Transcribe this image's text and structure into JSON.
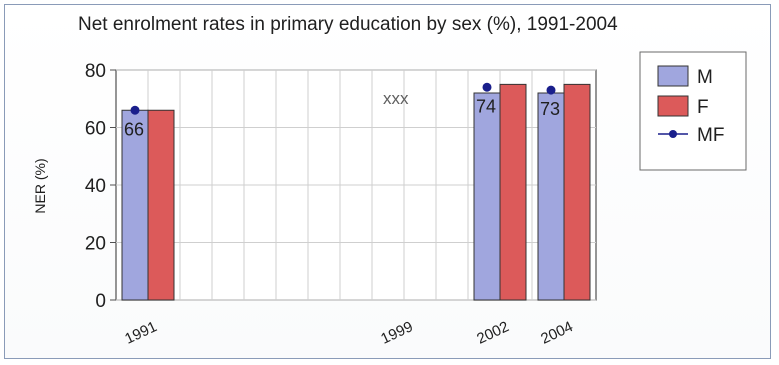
{
  "chart_data": {
    "type": "bar",
    "title": "Net enrolment rates in primary education by sex   (%), 1991-2004",
    "ylabel": "NER (%)",
    "xlabel": "",
    "ylim": [
      0,
      80
    ],
    "yticks": [
      "0",
      "20",
      "40",
      "60",
      "80"
    ],
    "x_range": [
      1990,
      2005
    ],
    "grid": true,
    "legend_position": "right",
    "categories": [
      "1991",
      "1999",
      "2002",
      "2004"
    ],
    "series": [
      {
        "name": "M",
        "type": "bar",
        "values": [
          66,
          null,
          72,
          72
        ],
        "color": "#a0a6de"
      },
      {
        "name": "F",
        "type": "bar",
        "values": [
          66,
          null,
          75,
          75
        ],
        "color": "#dc5a5a"
      },
      {
        "name": "MF",
        "type": "line-marker",
        "values": [
          66,
          null,
          74,
          73
        ],
        "color": "#1a1f8c"
      }
    ],
    "data_labels": [
      "66",
      "",
      "74",
      "73"
    ],
    "annotations": [
      "xxx"
    ]
  }
}
